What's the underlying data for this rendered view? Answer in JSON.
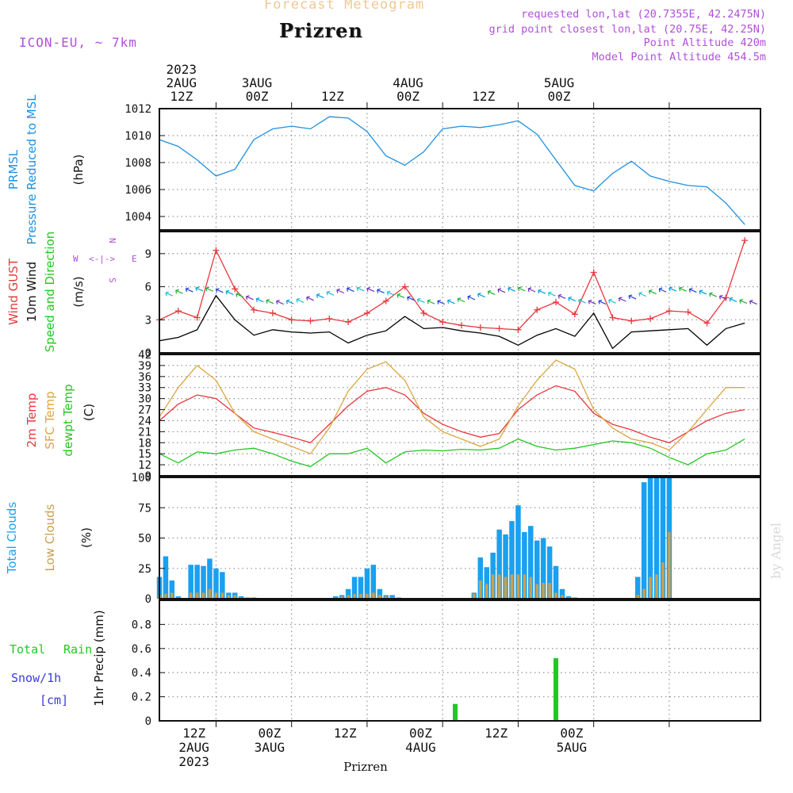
{
  "header": {
    "top_title": "Forecast Meteogram",
    "city": "Prizren",
    "model": "ICON-EU, ~ 7km",
    "requested": "requested lon,lat (20.7355E, 42.2475N)",
    "grid_point": "grid point closest lon,lat (20.75E, 42.25N)",
    "point_alt": "Point Altitude 420m",
    "model_alt": "Model Point Altitude 454.5m",
    "footer_city": "Prizren",
    "watermark": "by Angel"
  },
  "colors": {
    "pressure": "#1e90e0",
    "gust": "#e8373c",
    "wind": "#000000",
    "temp": "#e8373c",
    "sfc_temp": "#dca640",
    "dewpt": "#22c822",
    "total_clouds": "#1aa0f0",
    "low_clouds": "#c8a050",
    "rain": "#22c822",
    "snow": "#3a3ae0",
    "purple": "#b050d8",
    "grid": "#999999"
  },
  "chart_data": [
    {
      "type": "line",
      "title": "PRMSL Pressure Reduced to MSL",
      "ylabel": "(hPa)",
      "ylim": [
        1003,
        1012
      ],
      "yticks": [
        "1004",
        "1006",
        "1008",
        "1010",
        "1012"
      ],
      "x_hours": [
        0,
        3,
        6,
        9,
        12,
        15,
        18,
        21,
        24,
        27,
        30,
        33,
        36,
        39,
        42,
        45,
        48,
        51,
        54,
        57,
        60,
        63,
        66,
        69,
        72,
        75,
        78,
        81,
        84,
        87,
        90,
        93
      ],
      "series": [
        {
          "name": "PRMSL",
          "values": [
            1009.7,
            1009.2,
            1008.2,
            1007.0,
            1007.5,
            1009.7,
            1010.5,
            1010.7,
            1010.5,
            1011.4,
            1011.3,
            1010.3,
            1008.5,
            1007.8,
            1008.8,
            1010.5,
            1010.7,
            1010.6,
            1010.8,
            1011.1,
            1010.1,
            1008.2,
            1006.3,
            1005.9,
            1007.2,
            1008.1,
            1007.0,
            1006.6,
            1006.3,
            1006.2,
            1005.0,
            1003.4
          ]
        }
      ],
      "grid": true
    },
    {
      "type": "line",
      "title": "Wind GUST / 10m Wind Speed and Direction",
      "ylabel": "(m/s)",
      "ylim": [
        0,
        11
      ],
      "yticks": [
        "0",
        "3",
        "6",
        "9"
      ],
      "compass": {
        "w": "W",
        "e": "E",
        "n": "N",
        "s": "S",
        "arrows": "<-|->"
      },
      "x_hours": [
        0,
        3,
        6,
        9,
        12,
        15,
        18,
        21,
        24,
        27,
        30,
        33,
        36,
        39,
        42,
        45,
        48,
        51,
        54,
        57,
        60,
        63,
        66,
        69,
        72,
        75,
        78,
        81,
        84,
        87,
        90,
        93
      ],
      "series": [
        {
          "name": "Wind GUST",
          "values": [
            3.0,
            3.8,
            3.2,
            9.3,
            5.8,
            3.9,
            3.6,
            3.0,
            2.9,
            3.1,
            2.8,
            3.6,
            4.7,
            6.0,
            3.6,
            2.8,
            2.5,
            2.3,
            2.2,
            2.1,
            3.9,
            4.6,
            3.5,
            7.3,
            3.2,
            2.9,
            3.1,
            3.8,
            3.7,
            2.7,
            5.0,
            10.2
          ]
        },
        {
          "name": "10m Wind",
          "values": [
            1.1,
            1.4,
            2.1,
            5.2,
            3.0,
            1.6,
            2.1,
            1.9,
            1.8,
            1.9,
            0.9,
            1.6,
            2.0,
            3.3,
            2.2,
            2.3,
            2.0,
            1.8,
            1.5,
            0.7,
            1.6,
            2.2,
            1.5,
            3.6,
            0.4,
            1.9,
            2.0,
            2.1,
            2.2,
            0.7,
            2.2,
            2.7
          ]
        }
      ],
      "grid": true
    },
    {
      "type": "line",
      "title": "2m Temp / SFC Temp / dewpt Temp",
      "ylabel": "(C)",
      "ylim": [
        9,
        42
      ],
      "yticks": [
        "9",
        "12",
        "15",
        "18",
        "21",
        "24",
        "27",
        "30",
        "33",
        "36",
        "39",
        "42"
      ],
      "x_hours": [
        0,
        3,
        6,
        9,
        12,
        15,
        18,
        21,
        24,
        27,
        30,
        33,
        36,
        39,
        42,
        45,
        48,
        51,
        54,
        57,
        60,
        63,
        66,
        69,
        72,
        75,
        78,
        81,
        84,
        87,
        90,
        93
      ],
      "series": [
        {
          "name": "2m Temp",
          "values": [
            24.0,
            28.5,
            31.0,
            30.0,
            26.0,
            22.0,
            20.8,
            19.5,
            18.0,
            23.0,
            28.0,
            32.0,
            33.0,
            31.0,
            26.0,
            23.0,
            21.0,
            19.5,
            20.5,
            27.0,
            31.0,
            33.5,
            32.0,
            26.0,
            23.0,
            21.5,
            19.5,
            18.0,
            21.0,
            24.0,
            26.0,
            27.0
          ]
        },
        {
          "name": "SFC Temp",
          "values": [
            25.0,
            33.0,
            39.0,
            35.0,
            26.0,
            21.0,
            19.0,
            17.0,
            15.0,
            22.0,
            32.0,
            38.0,
            40.0,
            35.0,
            25.0,
            21.0,
            19.0,
            17.0,
            19.0,
            28.0,
            35.0,
            40.5,
            38.0,
            27.0,
            22.0,
            19.0,
            18.0,
            16.0,
            21.0,
            27.0,
            33.0,
            33.0
          ]
        },
        {
          "name": "dewpt Temp",
          "values": [
            15.0,
            12.5,
            15.5,
            15.0,
            16.0,
            16.5,
            15.0,
            13.0,
            11.5,
            15.0,
            15.0,
            16.5,
            12.5,
            15.5,
            16.0,
            15.8,
            16.2,
            16.0,
            16.5,
            19.0,
            17.0,
            16.0,
            16.5,
            17.5,
            18.5,
            18.0,
            16.5,
            14.0,
            12.0,
            15.0,
            16.0,
            19.0
          ]
        }
      ],
      "grid": true
    },
    {
      "type": "bar",
      "title": "Total Clouds / Low Clouds",
      "ylabel": "(%)",
      "ylim": [
        0,
        100
      ],
      "yticks": [
        "0",
        "25",
        "50",
        "75",
        "100"
      ],
      "x_hours": [
        0,
        1,
        2,
        3,
        5,
        6,
        7,
        8,
        9,
        10,
        11,
        12,
        13,
        14,
        15,
        28,
        29,
        30,
        31,
        32,
        33,
        34,
        35,
        36,
        37,
        38,
        50,
        51,
        52,
        53,
        54,
        55,
        56,
        57,
        58,
        59,
        60,
        61,
        62,
        63,
        64,
        65,
        66,
        76,
        77,
        78,
        79,
        80,
        81
      ],
      "series": [
        {
          "name": "Total Clouds",
          "values": [
            18,
            35,
            15,
            2,
            28,
            28,
            27,
            33,
            25,
            22,
            5,
            5,
            2,
            1,
            1,
            2,
            3,
            8,
            18,
            18,
            25,
            28,
            8,
            3,
            3,
            1,
            5,
            34,
            26,
            38,
            57,
            53,
            64,
            77,
            55,
            60,
            48,
            50,
            43,
            27,
            8,
            2,
            1,
            18,
            96,
            100,
            100,
            100,
            100
          ]
        },
        {
          "name": "Low Clouds",
          "values": [
            3,
            4,
            5,
            1,
            5,
            5,
            5,
            8,
            5,
            5,
            3,
            3,
            1,
            0,
            0,
            1,
            2,
            3,
            4,
            4,
            4,
            5,
            3,
            2,
            1,
            0,
            4,
            15,
            12,
            20,
            20,
            18,
            20,
            20,
            20,
            18,
            12,
            13,
            13,
            5,
            3,
            1,
            0,
            3,
            8,
            18,
            20,
            30,
            55
          ]
        }
      ],
      "grid": true
    },
    {
      "type": "bar",
      "title": "Total Rain / Snow/1h",
      "ylabel": "1hr Precip (mm)",
      "extra_labels": {
        "total": "Total",
        "rain": "Rain",
        "snow": "Snow/1h",
        "cm": "[cm]"
      },
      "ylim": [
        0,
        1.0
      ],
      "yticks": [
        "0",
        "0.2",
        "0.4",
        "0.6",
        "0.8"
      ],
      "x_hours": [
        47,
        63
      ],
      "series": [
        {
          "name": "Rain",
          "values": [
            0.14,
            0.52
          ]
        }
      ],
      "grid": true
    }
  ],
  "time_axis": {
    "year": "2023",
    "date_labels": [
      "2AUG",
      "3AUG",
      "4AUG",
      "5AUG"
    ],
    "hour_labels": [
      "12Z",
      "00Z",
      "12Z",
      "00Z",
      "12Z",
      "00Z"
    ],
    "top_year_label": "2023"
  },
  "panel_labels": {
    "p1_a": "PRMSL",
    "p1_b": "Pressure Reduced to MSL",
    "p2_a": "Wind GUST",
    "p2_b": "10m Wind",
    "p2_c": "Speed and Direction",
    "p3_a": "2m Temp",
    "p3_b": "SFC Temp",
    "p3_c": "dewpt Temp",
    "p4_a": "Total Clouds",
    "p4_b": "Low Clouds"
  }
}
